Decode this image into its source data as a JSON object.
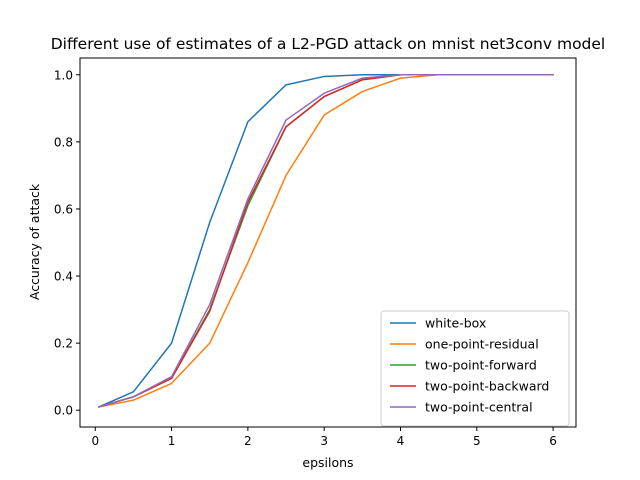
{
  "chart_data": {
    "type": "line",
    "title": "Different use of estimates of a L2-PGD attack on mnist net3conv model",
    "xlabel": "epsilons",
    "ylabel": "Accuracy of attack",
    "xlim": [
      -0.2,
      6.3
    ],
    "ylim": [
      -0.05,
      1.05
    ],
    "xticks": [
      0,
      1,
      2,
      3,
      4,
      5,
      6
    ],
    "xtick_labels": [
      "0",
      "1",
      "2",
      "3",
      "4",
      "5",
      "6"
    ],
    "yticks": [
      0.0,
      0.2,
      0.4,
      0.6,
      0.8,
      1.0
    ],
    "ytick_labels": [
      "0.0",
      "0.2",
      "0.4",
      "0.6",
      "0.8",
      "1.0"
    ],
    "grid": false,
    "legend_position": "lower-right",
    "x": [
      0.05,
      0.5,
      1.0,
      1.5,
      2.0,
      2.5,
      3.0,
      3.5,
      4.0,
      4.5,
      5.0,
      5.5,
      6.0
    ],
    "series": [
      {
        "name": "white-box",
        "color": "#1f77b4",
        "values": [
          0.01,
          0.055,
          0.2,
          0.56,
          0.86,
          0.97,
          0.995,
          1.0,
          1.0,
          1.0,
          1.0,
          1.0,
          1.0
        ]
      },
      {
        "name": "one-point-residual",
        "color": "#ff7f0e",
        "values": [
          0.01,
          0.03,
          0.08,
          0.2,
          0.44,
          0.7,
          0.88,
          0.95,
          0.99,
          1.0,
          1.0,
          1.0,
          1.0
        ]
      },
      {
        "name": "two-point-forward",
        "color": "#2ca02c",
        "values": [
          0.01,
          0.04,
          0.095,
          0.3,
          0.61,
          0.845,
          0.935,
          0.985,
          1.0,
          1.0,
          1.0,
          1.0,
          1.0
        ]
      },
      {
        "name": "two-point-backward",
        "color": "#d62728",
        "values": [
          0.01,
          0.04,
          0.095,
          0.295,
          0.62,
          0.845,
          0.935,
          0.985,
          1.0,
          1.0,
          1.0,
          1.0,
          1.0
        ]
      },
      {
        "name": "two-point-central",
        "color": "#9467bd",
        "values": [
          0.01,
          0.04,
          0.1,
          0.315,
          0.63,
          0.865,
          0.945,
          0.99,
          1.0,
          1.0,
          1.0,
          1.0,
          1.0
        ]
      }
    ]
  }
}
